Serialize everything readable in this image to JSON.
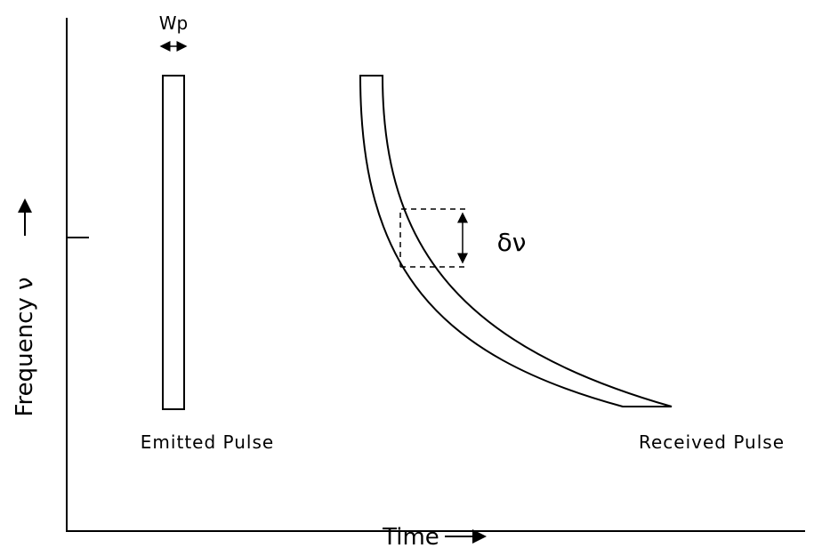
{
  "labels": {
    "width": "Wp",
    "emitted": "Emitted Pulse",
    "received": "Received Pulse",
    "spread": "δν",
    "y_axis": "Frequency ν",
    "x_axis": "Time"
  }
}
